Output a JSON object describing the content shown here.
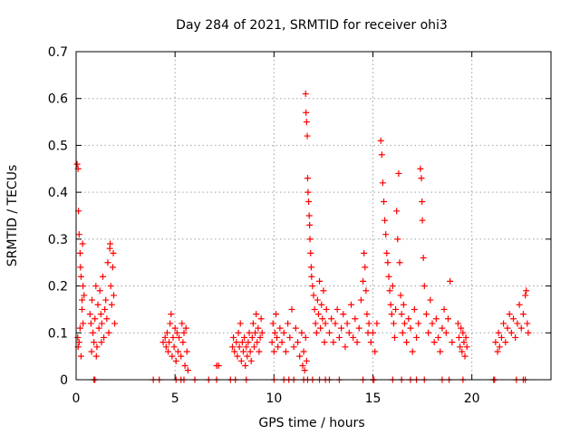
{
  "chart_data": {
    "type": "scatter",
    "title": "Day 284 of 2021, SRMTID for receiver ohi3",
    "xlabel": "GPS time / hours",
    "ylabel": "SRMTID / TECUs",
    "xlim": [
      0,
      24
    ],
    "ylim": [
      0,
      0.7
    ],
    "x_ticks": [
      0,
      5,
      10,
      15,
      20
    ],
    "y_ticks": [
      0,
      0.1,
      0.2,
      0.3,
      0.4,
      0.5,
      0.6,
      0.7
    ],
    "x_tick_labels": [
      "0",
      "5",
      "10",
      "15",
      "20"
    ],
    "y_tick_labels": [
      "0",
      "0.1",
      "0.2",
      "0.3",
      "0.4",
      "0.5",
      "0.6",
      "0.7"
    ],
    "grid": true,
    "marker": "+",
    "color": "#ff0000",
    "series": [
      {
        "name": "SRMTID",
        "points": [
          [
            0.05,
            0.46
          ],
          [
            0.1,
            0.45
          ],
          [
            0.12,
            0.36
          ],
          [
            0.15,
            0.31
          ],
          [
            0.2,
            0.27
          ],
          [
            0.22,
            0.24
          ],
          [
            0.25,
            0.22
          ],
          [
            0.3,
            0.17
          ],
          [
            0.33,
            0.29
          ],
          [
            0.35,
            0.2
          ],
          [
            0.08,
            0.09
          ],
          [
            0.1,
            0.07
          ],
          [
            0.15,
            0.08
          ],
          [
            0.2,
            0.11
          ],
          [
            0.25,
            0.05
          ],
          [
            0.3,
            0.15
          ],
          [
            0.35,
            0.12
          ],
          [
            0.4,
            0.18
          ],
          [
            0.7,
            0.14
          ],
          [
            0.75,
            0.12
          ],
          [
            0.8,
            0.17
          ],
          [
            0.85,
            0.1
          ],
          [
            0.9,
            0.08
          ],
          [
            0.95,
            0.13
          ],
          [
            1.0,
            0.2
          ],
          [
            1.05,
            0.07
          ],
          [
            1.1,
            0.16
          ],
          [
            1.15,
            0.11
          ],
          [
            1.2,
            0.19
          ],
          [
            1.25,
            0.14
          ],
          [
            1.3,
            0.12
          ],
          [
            1.35,
            0.22
          ],
          [
            1.4,
            0.09
          ],
          [
            1.45,
            0.15
          ],
          [
            1.5,
            0.17
          ],
          [
            1.55,
            0.13
          ],
          [
            1.6,
            0.25
          ],
          [
            1.65,
            0.1
          ],
          [
            1.7,
            0.28
          ],
          [
            1.75,
            0.2
          ],
          [
            1.8,
            0.16
          ],
          [
            1.85,
            0.24
          ],
          [
            1.9,
            0.18
          ],
          [
            1.95,
            0.12
          ],
          [
            0.78,
            0.06
          ],
          [
            1.02,
            0.05
          ],
          [
            1.28,
            0.08
          ],
          [
            1.72,
            0.29
          ],
          [
            1.88,
            0.27
          ],
          [
            4.4,
            0.08
          ],
          [
            4.5,
            0.09
          ],
          [
            4.55,
            0.07
          ],
          [
            4.6,
            0.1
          ],
          [
            4.65,
            0.06
          ],
          [
            4.7,
            0.08
          ],
          [
            4.75,
            0.12
          ],
          [
            4.8,
            0.14
          ],
          [
            4.85,
            0.05
          ],
          [
            4.9,
            0.09
          ],
          [
            4.95,
            0.07
          ],
          [
            5.0,
            0.11
          ],
          [
            5.05,
            0.04
          ],
          [
            5.1,
            0.1
          ],
          [
            5.15,
            0.06
          ],
          [
            5.2,
            0.09
          ],
          [
            5.3,
            0.05
          ],
          [
            5.35,
            0.12
          ],
          [
            5.4,
            0.08
          ],
          [
            5.45,
            0.1
          ],
          [
            5.5,
            0.03
          ],
          [
            5.55,
            0.11
          ],
          [
            5.6,
            0.06
          ],
          [
            5.65,
            0.02
          ],
          [
            7.1,
            0.03
          ],
          [
            7.2,
            0.03
          ],
          [
            7.9,
            0.07
          ],
          [
            7.95,
            0.09
          ],
          [
            8.0,
            0.06
          ],
          [
            8.1,
            0.08
          ],
          [
            8.15,
            0.05
          ],
          [
            8.2,
            0.1
          ],
          [
            8.25,
            0.07
          ],
          [
            8.3,
            0.12
          ],
          [
            8.35,
            0.04
          ],
          [
            8.4,
            0.08
          ],
          [
            8.45,
            0.06
          ],
          [
            8.5,
            0.09
          ],
          [
            8.55,
            0.03
          ],
          [
            8.6,
            0.07
          ],
          [
            8.65,
            0.05
          ],
          [
            8.7,
            0.08
          ],
          [
            8.75,
            0.1
          ],
          [
            8.8,
            0.06
          ],
          [
            8.85,
            0.04
          ],
          [
            8.9,
            0.09
          ],
          [
            8.95,
            0.12
          ],
          [
            9.0,
            0.07
          ],
          [
            9.05,
            0.1
          ],
          [
            9.1,
            0.14
          ],
          [
            9.15,
            0.08
          ],
          [
            9.2,
            0.11
          ],
          [
            9.25,
            0.06
          ],
          [
            9.3,
            0.09
          ],
          [
            9.35,
            0.13
          ],
          [
            9.4,
            0.1
          ],
          [
            9.9,
            0.08
          ],
          [
            9.95,
            0.12
          ],
          [
            10.0,
            0.06
          ],
          [
            10.05,
            0.1
          ],
          [
            10.1,
            0.14
          ],
          [
            10.15,
            0.09
          ],
          [
            10.2,
            0.07
          ],
          [
            10.3,
            0.11
          ],
          [
            10.4,
            0.08
          ],
          [
            10.5,
            0.1
          ],
          [
            10.6,
            0.06
          ],
          [
            10.7,
            0.12
          ],
          [
            10.8,
            0.09
          ],
          [
            10.9,
            0.15
          ],
          [
            11.0,
            0.07
          ],
          [
            11.1,
            0.11
          ],
          [
            11.2,
            0.08
          ],
          [
            11.3,
            0.05
          ],
          [
            11.4,
            0.1
          ],
          [
            11.45,
            0.03
          ],
          [
            11.5,
            0.06
          ],
          [
            11.55,
            0.02
          ],
          [
            11.6,
            0.09
          ],
          [
            11.65,
            0.04
          ],
          [
            11.6,
            0.61
          ],
          [
            11.62,
            0.57
          ],
          [
            11.65,
            0.55
          ],
          [
            11.68,
            0.52
          ],
          [
            11.7,
            0.43
          ],
          [
            11.72,
            0.4
          ],
          [
            11.75,
            0.38
          ],
          [
            11.78,
            0.35
          ],
          [
            11.8,
            0.33
          ],
          [
            11.82,
            0.3
          ],
          [
            11.85,
            0.27
          ],
          [
            11.88,
            0.24
          ],
          [
            11.9,
            0.22
          ],
          [
            11.95,
            0.2
          ],
          [
            12.0,
            0.18
          ],
          [
            12.05,
            0.15
          ],
          [
            12.1,
            0.12
          ],
          [
            12.15,
            0.1
          ],
          [
            12.2,
            0.17
          ],
          [
            12.25,
            0.14
          ],
          [
            12.3,
            0.21
          ],
          [
            12.35,
            0.11
          ],
          [
            12.4,
            0.16
          ],
          [
            12.45,
            0.13
          ],
          [
            12.5,
            0.19
          ],
          [
            12.55,
            0.08
          ],
          [
            12.6,
            0.12
          ],
          [
            12.65,
            0.15
          ],
          [
            12.8,
            0.1
          ],
          [
            12.9,
            0.13
          ],
          [
            13.0,
            0.08
          ],
          [
            13.1,
            0.12
          ],
          [
            13.2,
            0.15
          ],
          [
            13.3,
            0.09
          ],
          [
            13.4,
            0.11
          ],
          [
            13.5,
            0.14
          ],
          [
            13.6,
            0.07
          ],
          [
            13.7,
            0.12
          ],
          [
            13.8,
            0.1
          ],
          [
            13.9,
            0.16
          ],
          [
            14.0,
            0.09
          ],
          [
            14.1,
            0.13
          ],
          [
            14.2,
            0.08
          ],
          [
            14.3,
            0.11
          ],
          [
            14.4,
            0.17
          ],
          [
            14.5,
            0.21
          ],
          [
            14.55,
            0.27
          ],
          [
            14.6,
            0.24
          ],
          [
            14.65,
            0.19
          ],
          [
            14.7,
            0.14
          ],
          [
            14.75,
            0.1
          ],
          [
            14.8,
            0.12
          ],
          [
            14.9,
            0.08
          ],
          [
            15.0,
            0.1
          ],
          [
            15.1,
            0.06
          ],
          [
            15.2,
            0.12
          ],
          [
            15.4,
            0.51
          ],
          [
            15.45,
            0.48
          ],
          [
            15.5,
            0.42
          ],
          [
            15.55,
            0.38
          ],
          [
            15.6,
            0.34
          ],
          [
            15.65,
            0.31
          ],
          [
            15.7,
            0.27
          ],
          [
            15.75,
            0.25
          ],
          [
            15.8,
            0.22
          ],
          [
            15.85,
            0.19
          ],
          [
            15.9,
            0.16
          ],
          [
            15.95,
            0.14
          ],
          [
            16.0,
            0.2
          ],
          [
            16.05,
            0.12
          ],
          [
            16.1,
            0.09
          ],
          [
            16.15,
            0.15
          ],
          [
            16.2,
            0.36
          ],
          [
            16.25,
            0.3
          ],
          [
            16.3,
            0.44
          ],
          [
            16.35,
            0.25
          ],
          [
            16.4,
            0.18
          ],
          [
            16.45,
            0.14
          ],
          [
            16.5,
            0.1
          ],
          [
            16.55,
            0.16
          ],
          [
            16.6,
            0.12
          ],
          [
            16.7,
            0.08
          ],
          [
            16.8,
            0.13
          ],
          [
            16.9,
            0.11
          ],
          [
            17.0,
            0.06
          ],
          [
            17.1,
            0.15
          ],
          [
            17.2,
            0.09
          ],
          [
            17.3,
            0.12
          ],
          [
            17.4,
            0.45
          ],
          [
            17.45,
            0.43
          ],
          [
            17.48,
            0.38
          ],
          [
            17.5,
            0.34
          ],
          [
            17.55,
            0.26
          ],
          [
            17.6,
            0.2
          ],
          [
            17.7,
            0.14
          ],
          [
            17.8,
            0.1
          ],
          [
            17.9,
            0.17
          ],
          [
            18.0,
            0.12
          ],
          [
            18.1,
            0.08
          ],
          [
            18.2,
            0.13
          ],
          [
            18.3,
            0.09
          ],
          [
            18.4,
            0.06
          ],
          [
            18.5,
            0.11
          ],
          [
            18.6,
            0.15
          ],
          [
            18.7,
            0.1
          ],
          [
            18.8,
            0.13
          ],
          [
            18.9,
            0.21
          ],
          [
            19.0,
            0.08
          ],
          [
            19.3,
            0.12
          ],
          [
            19.35,
            0.09
          ],
          [
            19.4,
            0.07
          ],
          [
            19.45,
            0.11
          ],
          [
            19.5,
            0.06
          ],
          [
            19.55,
            0.1
          ],
          [
            19.6,
            0.08
          ],
          [
            19.65,
            0.05
          ],
          [
            19.7,
            0.09
          ],
          [
            19.75,
            0.07
          ],
          [
            21.2,
            0.08
          ],
          [
            21.3,
            0.06
          ],
          [
            21.35,
            0.1
          ],
          [
            21.4,
            0.07
          ],
          [
            21.5,
            0.09
          ],
          [
            21.6,
            0.12
          ],
          [
            21.7,
            0.08
          ],
          [
            21.8,
            0.11
          ],
          [
            21.9,
            0.14
          ],
          [
            22.0,
            0.1
          ],
          [
            22.1,
            0.13
          ],
          [
            22.2,
            0.09
          ],
          [
            22.3,
            0.12
          ],
          [
            22.4,
            0.16
          ],
          [
            22.5,
            0.11
          ],
          [
            22.6,
            0.14
          ],
          [
            22.7,
            0.18
          ],
          [
            22.75,
            0.19
          ],
          [
            22.8,
            0.12
          ],
          [
            22.85,
            0.1
          ],
          [
            0.9,
            0
          ],
          [
            0.95,
            0
          ],
          [
            3.9,
            0
          ],
          [
            4.2,
            0
          ],
          [
            5.05,
            0
          ],
          [
            5.3,
            0
          ],
          [
            5.45,
            0
          ],
          [
            6.0,
            0
          ],
          [
            6.7,
            0
          ],
          [
            7.1,
            0
          ],
          [
            7.8,
            0
          ],
          [
            8.05,
            0
          ],
          [
            8.6,
            0
          ],
          [
            10.0,
            0
          ],
          [
            10.5,
            0
          ],
          [
            10.75,
            0
          ],
          [
            11.0,
            0
          ],
          [
            11.5,
            0
          ],
          [
            11.7,
            0
          ],
          [
            11.95,
            0
          ],
          [
            12.3,
            0
          ],
          [
            12.6,
            0
          ],
          [
            12.8,
            0
          ],
          [
            13.3,
            0
          ],
          [
            14.5,
            0
          ],
          [
            15.0,
            0
          ],
          [
            15.05,
            0
          ],
          [
            16.0,
            0
          ],
          [
            16.45,
            0
          ],
          [
            16.9,
            0
          ],
          [
            17.2,
            0
          ],
          [
            17.6,
            0
          ],
          [
            18.5,
            0
          ],
          [
            18.85,
            0
          ],
          [
            19.55,
            0
          ],
          [
            21.1,
            0
          ],
          [
            21.15,
            0
          ],
          [
            22.25,
            0
          ],
          [
            22.6,
            0
          ],
          [
            22.7,
            0
          ]
        ]
      }
    ]
  }
}
